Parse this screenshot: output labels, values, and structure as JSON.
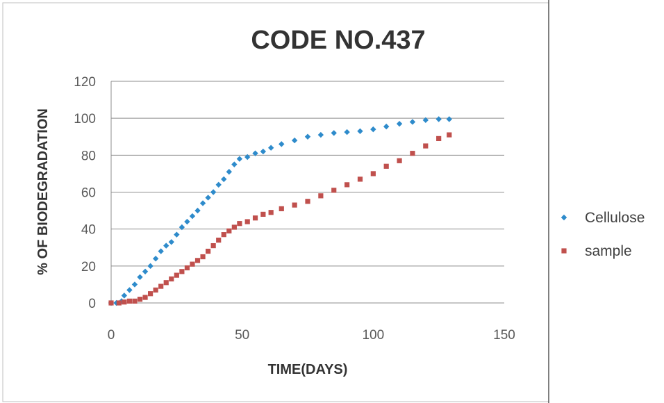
{
  "chart_data": {
    "type": "scatter",
    "title": "CODE NO.437",
    "xlabel": "TIME(DAYS)",
    "ylabel": "% OF BIODEGRADATION",
    "xlim": [
      0,
      150
    ],
    "ylim": [
      0,
      120
    ],
    "x_ticks": [
      "0",
      "50",
      "100",
      "150"
    ],
    "y_ticks": [
      "0",
      "20",
      "40",
      "60",
      "80",
      "100",
      "120"
    ],
    "grid": "horizontal",
    "legend_position": "right",
    "series": [
      {
        "name": "Cellulose",
        "color": "#2E8BCB",
        "marker": "diamond",
        "points": [
          [
            0,
            0
          ],
          [
            2,
            0
          ],
          [
            4,
            1
          ],
          [
            5,
            4
          ],
          [
            7,
            7
          ],
          [
            9,
            10
          ],
          [
            11,
            14
          ],
          [
            13,
            17
          ],
          [
            15,
            20
          ],
          [
            17,
            24
          ],
          [
            19,
            28
          ],
          [
            21,
            31
          ],
          [
            23,
            33
          ],
          [
            25,
            37
          ],
          [
            27,
            41
          ],
          [
            29,
            44
          ],
          [
            31,
            47
          ],
          [
            33,
            50
          ],
          [
            35,
            54
          ],
          [
            37,
            57
          ],
          [
            39,
            60
          ],
          [
            41,
            64
          ],
          [
            43,
            67
          ],
          [
            45,
            71
          ],
          [
            47,
            75
          ],
          [
            49,
            78
          ],
          [
            52,
            79
          ],
          [
            55,
            81
          ],
          [
            58,
            82
          ],
          [
            61,
            84
          ],
          [
            65,
            86
          ],
          [
            70,
            88
          ],
          [
            75,
            90
          ],
          [
            80,
            91
          ],
          [
            85,
            92
          ],
          [
            90,
            92.5
          ],
          [
            95,
            93
          ],
          [
            100,
            94
          ],
          [
            105,
            95.5
          ],
          [
            110,
            97
          ],
          [
            115,
            98
          ],
          [
            120,
            99
          ],
          [
            125,
            99.5
          ],
          [
            129,
            99.5
          ]
        ]
      },
      {
        "name": "sample",
        "color": "#C0504D",
        "marker": "square",
        "points": [
          [
            0,
            0
          ],
          [
            3,
            0
          ],
          [
            5,
            0.5
          ],
          [
            7,
            1
          ],
          [
            9,
            1
          ],
          [
            11,
            2
          ],
          [
            13,
            3
          ],
          [
            15,
            5
          ],
          [
            17,
            7
          ],
          [
            19,
            9
          ],
          [
            21,
            11
          ],
          [
            23,
            13
          ],
          [
            25,
            15
          ],
          [
            27,
            17
          ],
          [
            29,
            19
          ],
          [
            31,
            21
          ],
          [
            33,
            23
          ],
          [
            35,
            25
          ],
          [
            37,
            28
          ],
          [
            39,
            31
          ],
          [
            41,
            34
          ],
          [
            43,
            37
          ],
          [
            45,
            39
          ],
          [
            47,
            41
          ],
          [
            49,
            43
          ],
          [
            52,
            44
          ],
          [
            55,
            46
          ],
          [
            58,
            48
          ],
          [
            61,
            49
          ],
          [
            65,
            51
          ],
          [
            70,
            53
          ],
          [
            75,
            55
          ],
          [
            80,
            58
          ],
          [
            85,
            61
          ],
          [
            90,
            64
          ],
          [
            95,
            67
          ],
          [
            100,
            70
          ],
          [
            105,
            74
          ],
          [
            110,
            77
          ],
          [
            115,
            81
          ],
          [
            120,
            85
          ],
          [
            125,
            89
          ],
          [
            129,
            91
          ]
        ]
      }
    ]
  }
}
